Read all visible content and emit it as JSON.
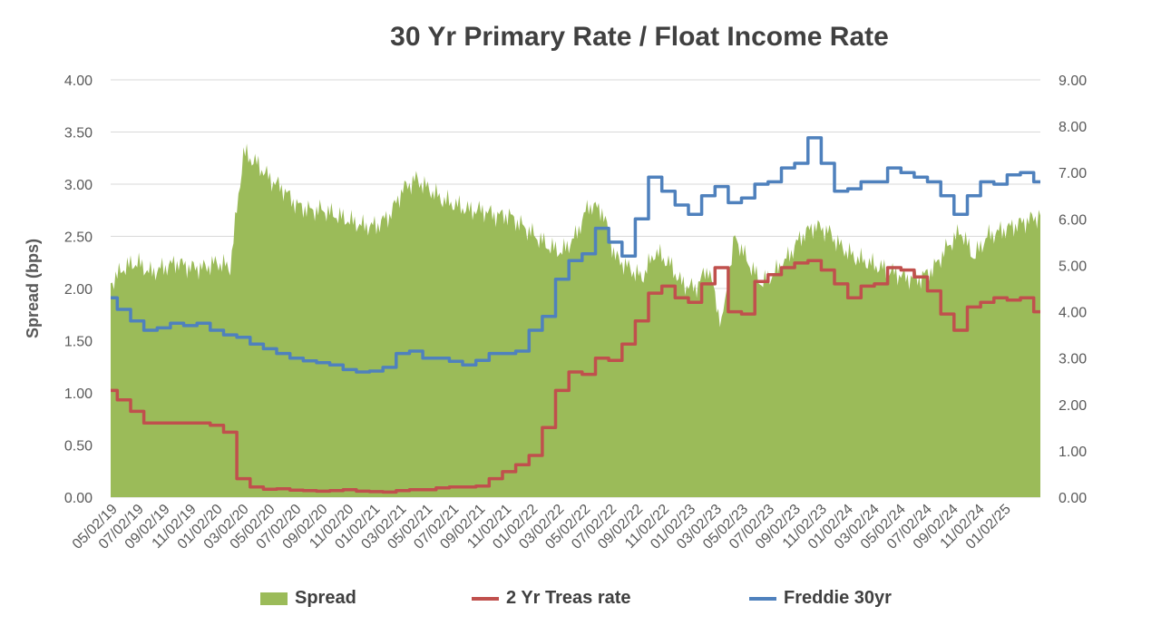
{
  "chart_data": {
    "type": "area+line",
    "title": "30 Yr Primary Rate / Float Income Rate",
    "ylabel": "Spread (bps)",
    "y2label": "",
    "ylim": [
      0,
      4
    ],
    "y2lim": [
      0,
      9
    ],
    "yticks": [
      "0.00",
      "0.50",
      "1.00",
      "1.50",
      "2.00",
      "2.50",
      "3.00",
      "3.50",
      "4.00"
    ],
    "y2ticks": [
      "0.00",
      "1.00",
      "2.00",
      "3.00",
      "4.00",
      "5.00",
      "6.00",
      "7.00",
      "8.00",
      "9.00"
    ],
    "xticks": [
      "05/02/19",
      "07/02/19",
      "09/02/19",
      "11/02/19",
      "01/02/20",
      "03/02/20",
      "05/02/20",
      "07/02/20",
      "09/02/20",
      "11/02/20",
      "01/02/21",
      "03/02/21",
      "05/02/21",
      "07/02/21",
      "09/02/21",
      "11/02/21",
      "01/02/22",
      "03/02/22",
      "05/02/22",
      "07/02/22",
      "09/02/22",
      "11/02/22",
      "01/02/23",
      "03/02/23",
      "05/02/23",
      "07/02/23",
      "09/02/23",
      "11/02/23",
      "01/02/24",
      "03/02/24",
      "05/02/24",
      "07/02/24",
      "09/02/24",
      "11/02/24",
      "01/02/25"
    ],
    "grid": true,
    "legend_position": "bottom",
    "x": [
      "2019-05",
      "2019-06",
      "2019-07",
      "2019-08",
      "2019-09",
      "2019-10",
      "2019-11",
      "2019-12",
      "2020-01",
      "2020-02",
      "2020-03",
      "2020-04",
      "2020-05",
      "2020-06",
      "2020-07",
      "2020-08",
      "2020-09",
      "2020-10",
      "2020-11",
      "2020-12",
      "2021-01",
      "2021-02",
      "2021-03",
      "2021-04",
      "2021-05",
      "2021-06",
      "2021-07",
      "2021-08",
      "2021-09",
      "2021-10",
      "2021-11",
      "2021-12",
      "2022-01",
      "2022-02",
      "2022-03",
      "2022-04",
      "2022-05",
      "2022-06",
      "2022-07",
      "2022-08",
      "2022-09",
      "2022-10",
      "2022-11",
      "2022-12",
      "2023-01",
      "2023-02",
      "2023-03",
      "2023-04",
      "2023-05",
      "2023-06",
      "2023-07",
      "2023-08",
      "2023-09",
      "2023-10",
      "2023-11",
      "2023-12",
      "2024-01",
      "2024-02",
      "2024-03",
      "2024-04",
      "2024-05",
      "2024-06",
      "2024-07",
      "2024-08",
      "2024-09",
      "2024-10",
      "2024-11",
      "2024-12",
      "2025-01",
      "2025-02",
      "2025-03"
    ],
    "series": [
      {
        "name": "Spread",
        "kind": "area",
        "axis": "left",
        "color": "#9BBB59",
        "values": [
          2.05,
          2.2,
          2.25,
          2.15,
          2.2,
          2.25,
          2.2,
          2.2,
          2.25,
          2.2,
          3.3,
          3.2,
          3.05,
          2.95,
          2.8,
          2.75,
          2.75,
          2.7,
          2.65,
          2.6,
          2.6,
          2.7,
          2.95,
          3.05,
          2.95,
          2.85,
          2.8,
          2.75,
          2.75,
          2.7,
          2.7,
          2.6,
          2.5,
          2.4,
          2.35,
          2.5,
          2.8,
          2.75,
          2.3,
          2.2,
          2.1,
          2.35,
          2.25,
          2.05,
          2.0,
          2.2,
          1.65,
          2.5,
          2.25,
          2.05,
          2.15,
          2.3,
          2.5,
          2.6,
          2.55,
          2.4,
          2.3,
          2.25,
          2.2,
          2.15,
          2.1,
          2.1,
          2.2,
          2.4,
          2.55,
          2.3,
          2.5,
          2.55,
          2.6,
          2.65,
          2.7
        ]
      },
      {
        "name": "2 Yr Treas rate",
        "kind": "line",
        "axis": "right",
        "color": "#C0504D",
        "values": [
          2.3,
          2.1,
          1.85,
          1.6,
          1.6,
          1.6,
          1.6,
          1.6,
          1.55,
          1.4,
          0.4,
          0.22,
          0.17,
          0.18,
          0.15,
          0.14,
          0.13,
          0.14,
          0.16,
          0.13,
          0.12,
          0.11,
          0.14,
          0.16,
          0.16,
          0.2,
          0.22,
          0.22,
          0.24,
          0.4,
          0.55,
          0.7,
          0.9,
          1.5,
          2.3,
          2.7,
          2.65,
          3.0,
          2.95,
          3.3,
          3.8,
          4.4,
          4.55,
          4.3,
          4.2,
          4.6,
          4.95,
          4.0,
          3.95,
          4.65,
          4.8,
          4.95,
          5.05,
          5.1,
          4.9,
          4.6,
          4.3,
          4.55,
          4.6,
          4.95,
          4.9,
          4.75,
          4.45,
          3.95,
          3.6,
          4.1,
          4.2,
          4.3,
          4.25,
          4.3,
          4.0
        ]
      },
      {
        "name": "Freddie 30yr",
        "kind": "line",
        "axis": "right",
        "color": "#4F81BD",
        "values": [
          4.3,
          4.05,
          3.8,
          3.6,
          3.65,
          3.75,
          3.7,
          3.75,
          3.6,
          3.5,
          3.45,
          3.3,
          3.2,
          3.1,
          3.0,
          2.94,
          2.9,
          2.85,
          2.75,
          2.7,
          2.72,
          2.8,
          3.1,
          3.15,
          3.0,
          3.0,
          2.93,
          2.85,
          2.95,
          3.1,
          3.1,
          3.15,
          3.6,
          3.9,
          4.7,
          5.1,
          5.25,
          5.8,
          5.5,
          5.2,
          6.0,
          6.9,
          6.6,
          6.3,
          6.1,
          6.5,
          6.7,
          6.35,
          6.45,
          6.75,
          6.8,
          7.1,
          7.2,
          7.75,
          7.2,
          6.6,
          6.65,
          6.8,
          6.8,
          7.1,
          7.0,
          6.9,
          6.8,
          6.5,
          6.1,
          6.5,
          6.8,
          6.75,
          6.95,
          7.0,
          6.8
        ]
      }
    ]
  }
}
